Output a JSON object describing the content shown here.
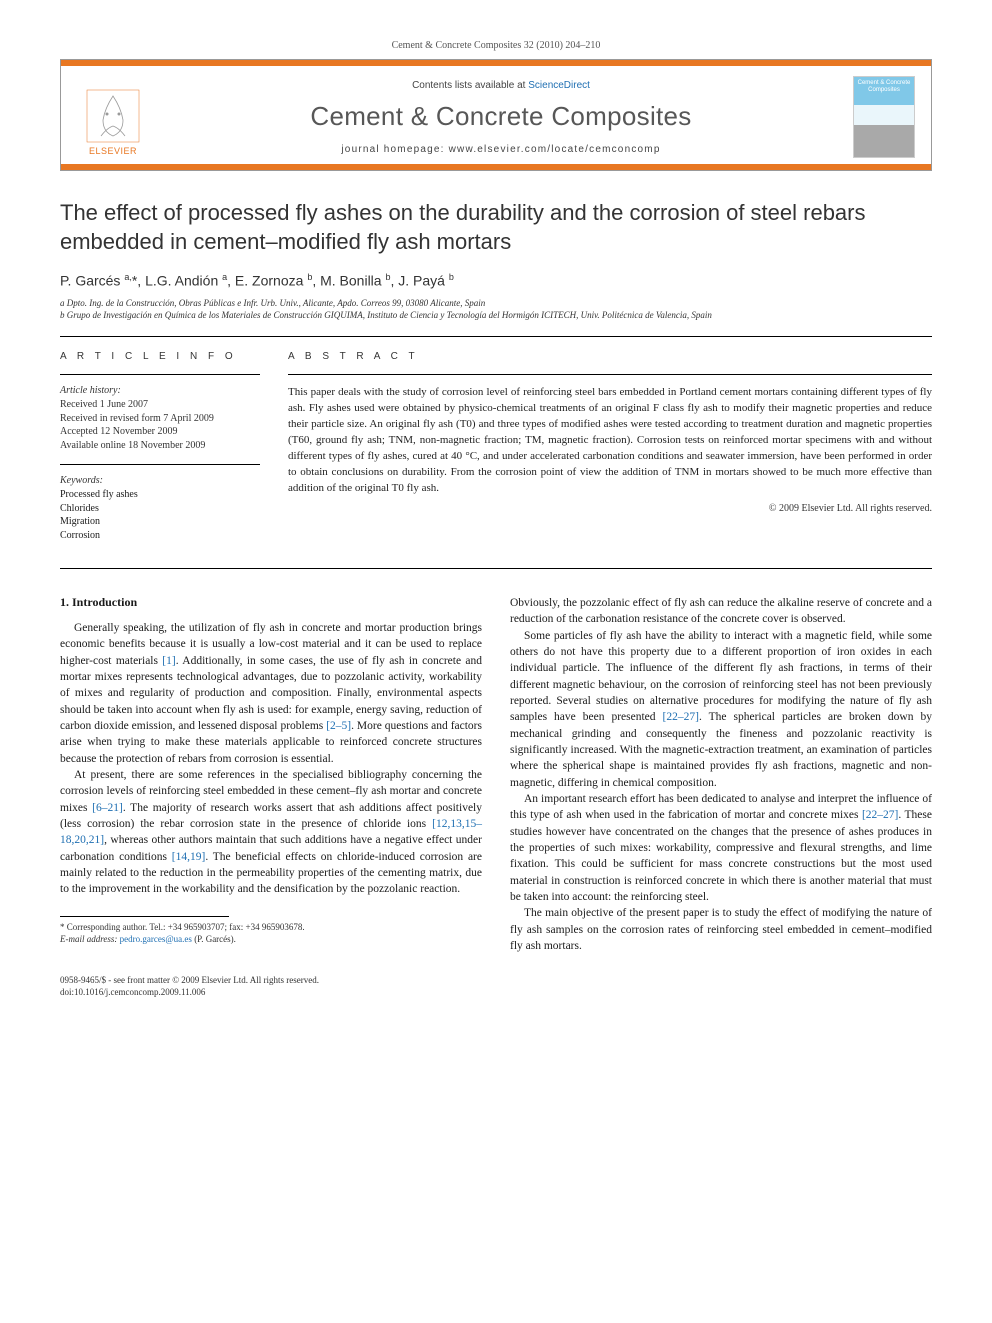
{
  "header": {
    "citation": "Cement & Concrete Composites 32 (2010) 204–210",
    "contents_prefix": "Contents lists available at ",
    "contents_link": "ScienceDirect",
    "journal_name": "Cement & Concrete Composites",
    "homepage_prefix": "journal homepage: ",
    "homepage_url": "www.elsevier.com/locate/cemconcomp",
    "publisher": "ELSEVIER",
    "cover_label": "Cement & Concrete Composites",
    "accent_color": "#e87722",
    "link_color": "#1f6fb2"
  },
  "article": {
    "title": "The effect of processed fly ashes on the durability and the corrosion of steel rebars embedded in cement–modified fly ash mortars",
    "authors_html": "P. Garcés <sup>a,</sup>*, L.G. Andión <sup>a</sup>, E. Zornoza <sup>b</sup>, M. Bonilla <sup>b</sup>, J. Payá <sup>b</sup>",
    "affiliations": [
      "a Dpto. Ing. de la Construcción, Obras Públicas e Infr. Urb. Univ., Alicante, Apdo. Correos 99, 03080 Alicante, Spain",
      "b Grupo de Investigación en Química de los Materiales de Construcción GIQUIMA, Instituto de Ciencia y Tecnología del Hormigón ICITECH, Univ. Politécnica de Valencia, Spain"
    ]
  },
  "info": {
    "article_info_label": "A R T I C L E   I N F O",
    "abstract_label": "A B S T R A C T",
    "history_label": "Article history:",
    "history": [
      "Received 1 June 2007",
      "Received in revised form 7 April 2009",
      "Accepted 12 November 2009",
      "Available online 18 November 2009"
    ],
    "keywords_label": "Keywords:",
    "keywords": [
      "Processed fly ashes",
      "Chlorides",
      "Migration",
      "Corrosion"
    ],
    "abstract": "This paper deals with the study of corrosion level of reinforcing steel bars embedded in Portland cement mortars containing different types of fly ash. Fly ashes used were obtained by physico-chemical treatments of an original F class fly ash to modify their magnetic properties and reduce their particle size. An original fly ash (T0) and three types of modified ashes were tested according to treatment duration and magnetic properties (T60, ground fly ash; TNM, non-magnetic fraction; TM, magnetic fraction). Corrosion tests on reinforced mortar specimens with and without different types of fly ashes, cured at 40 °C, and under accelerated carbonation conditions and seawater immersion, have been performed in order to obtain conclusions on durability. From the corrosion point of view the addition of TNM in mortars showed to be much more effective than addition of the original T0 fly ash.",
    "copyright": "© 2009 Elsevier Ltd. All rights reserved."
  },
  "body": {
    "heading1": "1. Introduction",
    "col1": [
      "Generally speaking, the utilization of fly ash in concrete and mortar production brings economic benefits because it is usually a low-cost material and it can be used to replace higher-cost materials [1]. Additionally, in some cases, the use of fly ash in concrete and mortar mixes represents technological advantages, due to pozzolanic activity, workability of mixes and regularity of production and composition. Finally, environmental aspects should be taken into account when fly ash is used: for example, energy saving, reduction of carbon dioxide emission, and lessened disposal problems [2–5]. More questions and factors arise when trying to make these materials applicable to reinforced concrete structures because the protection of rebars from corrosion is essential.",
      "At present, there are some references in the specialised bibliography concerning the corrosion levels of reinforcing steel embedded in these cement–fly ash mortar and concrete mixes [6–21]. The majority of research works assert that ash additions affect positively (less corrosion) the rebar corrosion state in the presence of chloride ions [12,13,15–18,20,21], whereas other authors maintain that such additions have a negative effect under carbonation conditions [14,19]. The beneficial effects on chloride-induced corrosion are mainly related to the reduction in the permeability properties of the cementing matrix, due to the improvement in the workability and the densification by the pozzolanic reaction."
    ],
    "col2": [
      "Obviously, the pozzolanic effect of fly ash can reduce the alkaline reserve of concrete and a reduction of the carbonation resistance of the concrete cover is observed.",
      "Some particles of fly ash have the ability to interact with a magnetic field, while some others do not have this property due to a different proportion of iron oxides in each individual particle. The influence of the different fly ash fractions, in terms of their different magnetic behaviour, on the corrosion of reinforcing steel has not been previously reported. Several studies on alternative procedures for modifying the nature of fly ash samples have been presented [22–27]. The spherical particles are broken down by mechanical grinding and consequently the fineness and pozzolanic reactivity is significantly increased. With the magnetic-extraction treatment, an examination of particles where the spherical shape is maintained provides fly ash fractions, magnetic and non-magnetic, differing in chemical composition.",
      "An important research effort has been dedicated to analyse and interpret the influence of this type of ash when used in the fabrication of mortar and concrete mixes [22–27]. These studies however have concentrated on the changes that the presence of ashes produces in the properties of such mixes: workability, compressive and flexural strengths, and lime fixation. This could be sufficient for mass concrete constructions but the most used material in construction is reinforced concrete in which there is another material that must be taken into account: the reinforcing steel.",
      "The main objective of the present paper is to study the effect of modifying the nature of fly ash samples on the corrosion rates of reinforcing steel embedded in cement–modified fly ash mortars."
    ]
  },
  "footnote": {
    "corr_label": "* Corresponding author. Tel.: +34 965903707; fax: +34 965903678.",
    "email_label": "E-mail address:",
    "email": "pedro.garces@ua.es",
    "email_suffix": "(P. Garcés)."
  },
  "footer": {
    "line1": "0958-9465/$ - see front matter © 2009 Elsevier Ltd. All rights reserved.",
    "line2": "doi:10.1016/j.cemconcomp.2009.11.006"
  }
}
